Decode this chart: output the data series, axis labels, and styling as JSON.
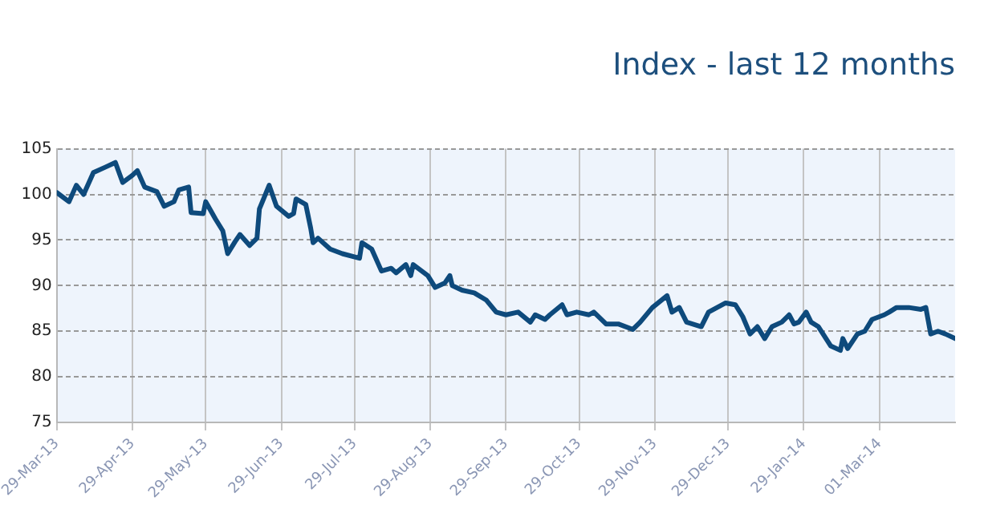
{
  "chart_data": {
    "type": "line",
    "title": "Index - last 12 months",
    "x": [
      "2013-03-29",
      "2013-04-03",
      "2013-04-06",
      "2013-04-09",
      "2013-04-13",
      "2013-04-18",
      "2013-04-22",
      "2013-04-25",
      "2013-04-29",
      "2013-05-01",
      "2013-05-04",
      "2013-05-09",
      "2013-05-12",
      "2013-05-16",
      "2013-05-18",
      "2013-05-22",
      "2013-05-23",
      "2013-05-28",
      "2013-05-29",
      "2013-06-02",
      "2013-06-05",
      "2013-06-07",
      "2013-06-10",
      "2013-06-12",
      "2013-06-16",
      "2013-06-19",
      "2013-06-20",
      "2013-06-24",
      "2013-06-27",
      "2013-07-02",
      "2013-07-04",
      "2013-07-05",
      "2013-07-09",
      "2013-07-11",
      "2013-07-12",
      "2013-07-14",
      "2013-07-19",
      "2013-07-24",
      "2013-07-31",
      "2013-08-01",
      "2013-08-05",
      "2013-08-09",
      "2013-08-13",
      "2013-08-15",
      "2013-08-19",
      "2013-08-21",
      "2013-08-22",
      "2013-08-28",
      "2013-08-31",
      "2013-09-04",
      "2013-09-06",
      "2013-09-07",
      "2013-09-11",
      "2013-09-16",
      "2013-09-21",
      "2013-09-25",
      "2013-09-29",
      "2013-10-04",
      "2013-10-09",
      "2013-10-11",
      "2013-10-15",
      "2013-10-17",
      "2013-10-22",
      "2013-10-24",
      "2013-10-28",
      "2013-11-02",
      "2013-11-04",
      "2013-11-09",
      "2013-11-14",
      "2013-11-20",
      "2013-11-23",
      "2013-11-28",
      "2013-12-04",
      "2013-12-06",
      "2013-12-09",
      "2013-12-12",
      "2013-12-18",
      "2013-12-21",
      "2013-12-28",
      "2014-01-01",
      "2014-01-04",
      "2014-01-07",
      "2014-01-10",
      "2014-01-13",
      "2014-01-16",
      "2014-01-20",
      "2014-01-23",
      "2014-01-25",
      "2014-01-27",
      "2014-01-30",
      "2014-02-01",
      "2014-02-04",
      "2014-02-09",
      "2014-02-13",
      "2014-02-14",
      "2014-02-16",
      "2014-02-20",
      "2014-02-23",
      "2014-02-26",
      "2014-03-03",
      "2014-03-05",
      "2014-03-08",
      "2014-03-13",
      "2014-03-18",
      "2014-03-20",
      "2014-03-22",
      "2014-03-25",
      "2014-03-28",
      "2014-04-01"
    ],
    "series": [
      {
        "color": "#0e4a7c",
        "values": [
          100.2,
          99.2,
          101,
          100,
          102.4,
          103,
          103.5,
          101.3,
          102.1,
          102.6,
          100.8,
          100.3,
          98.7,
          99.2,
          100.5,
          100.8,
          98,
          97.9,
          99.2,
          97.3,
          96,
          93.5,
          94.8,
          95.6,
          94.4,
          95.2,
          98.4,
          101,
          98.7,
          97.6,
          97.9,
          99.5,
          98.9,
          96.3,
          94.7,
          95.2,
          94,
          93.5,
          93,
          94.7,
          94,
          91.6,
          91.9,
          91.4,
          92.3,
          91.1,
          92.3,
          91.1,
          89.8,
          90.3,
          91.1,
          90,
          89.5,
          89.2,
          88.4,
          87.1,
          86.8,
          87.1,
          86,
          86.8,
          86.3,
          86.8,
          87.9,
          86.8,
          87.1,
          86.8,
          87.1,
          85.8,
          85.8,
          85.2,
          86,
          87.6,
          88.9,
          87.1,
          87.6,
          86,
          85.5,
          87.1,
          88.1,
          87.9,
          86.6,
          84.7,
          85.5,
          84.2,
          85.5,
          86,
          86.8,
          85.8,
          86,
          87.1,
          86,
          85.5,
          83.4,
          82.9,
          84.2,
          83.1,
          84.7,
          85,
          86.3,
          86.8,
          87.1,
          87.6,
          87.6,
          87.4,
          87.6,
          84.7,
          85,
          84.7,
          84.2
        ]
      }
    ],
    "xlim": [
      "2013-03-29",
      "2014-04-01"
    ],
    "xticks": [
      {
        "value": "2013-03-29",
        "label": "29-Mar-13"
      },
      {
        "value": "2013-04-29",
        "label": "29-Apr-13"
      },
      {
        "value": "2013-05-29",
        "label": "29-May-13"
      },
      {
        "value": "2013-06-29",
        "label": "29-Jun-13"
      },
      {
        "value": "2013-07-29",
        "label": "29-Jul-13"
      },
      {
        "value": "2013-08-29",
        "label": "29-Aug-13"
      },
      {
        "value": "2013-09-29",
        "label": "29-Sep-13"
      },
      {
        "value": "2013-10-29",
        "label": "29-Oct-13"
      },
      {
        "value": "2013-11-29",
        "label": "29-Nov-13"
      },
      {
        "value": "2013-12-29",
        "label": "29-Dec-13"
      },
      {
        "value": "2014-01-29",
        "label": "29-Jan-14"
      },
      {
        "value": "2014-03-01",
        "label": "01-Mar-14"
      }
    ],
    "ylim": [
      75,
      105
    ],
    "yticks": [
      75,
      80,
      85,
      90,
      95,
      100,
      105
    ],
    "grid": true,
    "legend": false,
    "marker": "none",
    "line_style": "solid"
  }
}
